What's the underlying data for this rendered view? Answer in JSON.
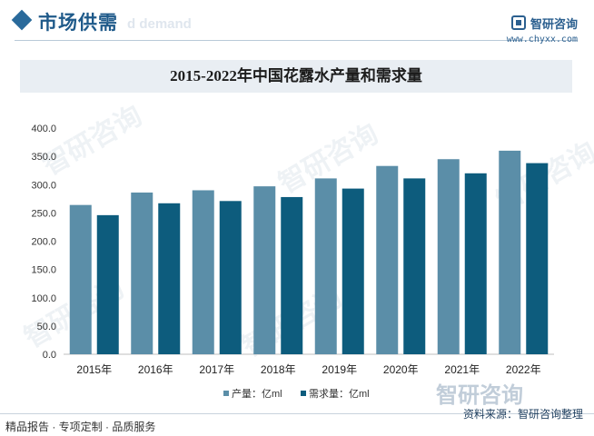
{
  "header": {
    "section_title": "市场供需",
    "section_subtitle": "d demand",
    "logo_icon": "zhiyan-logo-icon",
    "logo_text": "智研咨询",
    "logo_url": "www.chyxx.com"
  },
  "watermark": {
    "text": "智研咨询"
  },
  "footer": {
    "left_text": "精品报告 · 专项定制 · 品质服务",
    "source_text": "资料来源：智研咨询整理"
  },
  "colors": {
    "production": "#5b8ea8",
    "demand": "#0d5c7d",
    "title_band": "#e9eef3",
    "accent": "#1f5a8a"
  },
  "chart_data": {
    "type": "bar",
    "title": "2015-2022年中国花露水产量和需求量",
    "categories": [
      "2015年",
      "2016年",
      "2017年",
      "2018年",
      "2019年",
      "2020年",
      "2021年",
      "2022年"
    ],
    "series": [
      {
        "name": "产量：亿ml",
        "values": [
          264,
          286,
          290,
          297,
          311,
          333,
          345,
          360
        ]
      },
      {
        "name": "需求量：亿ml",
        "values": [
          246,
          267,
          271,
          278,
          293,
          311,
          320,
          338
        ]
      }
    ],
    "y_ticks": [
      "0.0",
      "50.0",
      "100.0",
      "150.0",
      "200.0",
      "250.0",
      "300.0",
      "350.0",
      "400.0"
    ],
    "ylim": [
      0,
      400
    ],
    "grid": false,
    "legend_position": "bottom"
  }
}
